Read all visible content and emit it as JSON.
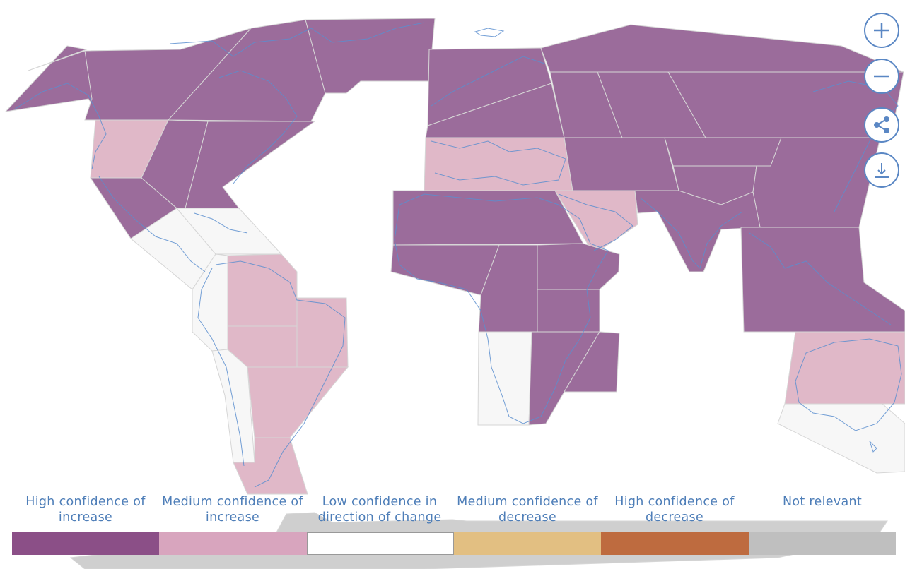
{
  "controls": {
    "zoom_in_icon": "plus-icon",
    "zoom_out_icon": "minus-icon",
    "share_icon": "share-icon",
    "download_icon": "download-icon"
  },
  "colors": {
    "high_increase": "#9b6c9b",
    "medium_increase": "#e0b8c8",
    "low_confidence": "#f7f7f7",
    "coast": "#5b8ecf"
  },
  "legend": {
    "items": [
      {
        "label": "High confidence of increase",
        "color": "#8b4f87"
      },
      {
        "label": "Medium confidence of increase",
        "color": "#d8a5be"
      },
      {
        "label": "Low confidence in direction of change",
        "color": "#ffffff"
      },
      {
        "label": "Medium confidence of decrease",
        "color": "#e2bf82"
      },
      {
        "label": "High confidence of decrease",
        "color": "#be6b3f"
      },
      {
        "label": "Not relevant",
        "color": "#bfbfbf"
      }
    ]
  }
}
